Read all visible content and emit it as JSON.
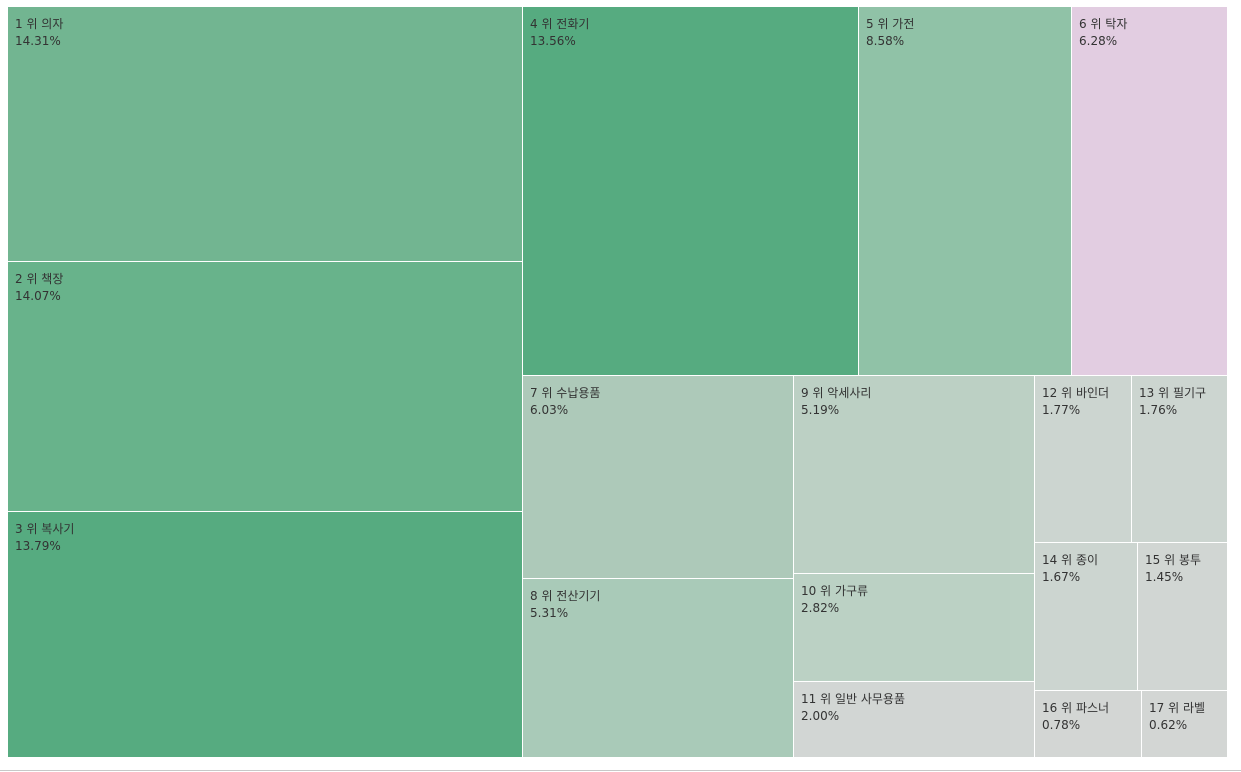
{
  "chart_data": {
    "type": "treemap",
    "value_unit": "%",
    "items": [
      {
        "rank_label": "1 위 의자",
        "value": 14.31,
        "value_label": "14.31%",
        "color": "#72b591"
      },
      {
        "rank_label": "2 위 책장",
        "value": 14.07,
        "value_label": "14.07%",
        "color": "#68b38b"
      },
      {
        "rank_label": "3 위 복사기",
        "value": 13.79,
        "value_label": "13.79%",
        "color": "#56ab80"
      },
      {
        "rank_label": "4 위 전화기",
        "value": 13.56,
        "value_label": "13.56%",
        "color": "#56ab80"
      },
      {
        "rank_label": "5 위 가전",
        "value": 8.58,
        "value_label": "8.58%",
        "color": "#90c2a7"
      },
      {
        "rank_label": "6 위 탁자",
        "value": 6.28,
        "value_label": "6.28%",
        "color": "#e2cde1"
      },
      {
        "rank_label": "7 위 수납용품",
        "value": 6.03,
        "value_label": "6.03%",
        "color": "#adc9b9"
      },
      {
        "rank_label": "8 위 전산기기",
        "value": 5.31,
        "value_label": "5.31%",
        "color": "#a9cab8"
      },
      {
        "rank_label": "9 위 악세사리",
        "value": 5.19,
        "value_label": "5.19%",
        "color": "#bcd0c4"
      },
      {
        "rank_label": "10 위 가구류",
        "value": 2.82,
        "value_label": "2.82%",
        "color": "#bbd1c4"
      },
      {
        "rank_label": "11 위 일반 사무용품",
        "value": 2.0,
        "value_label": "2.00%",
        "color": "#d2d6d4"
      },
      {
        "rank_label": "12 위 바인더",
        "value": 1.77,
        "value_label": "1.77%",
        "color": "#ccd5d0"
      },
      {
        "rank_label": "13 위 필기구",
        "value": 1.76,
        "value_label": "1.76%",
        "color": "#ccd5d0"
      },
      {
        "rank_label": "14 위 종이",
        "value": 1.67,
        "value_label": "1.67%",
        "color": "#ccd5d0"
      },
      {
        "rank_label": "15 위 봉투",
        "value": 1.45,
        "value_label": "1.45%",
        "color": "#d1d6d3"
      },
      {
        "rank_label": "16 위 파스너",
        "value": 0.78,
        "value_label": "0.78%",
        "color": "#d3d6d4"
      },
      {
        "rank_label": "17 위 라벨",
        "value": 0.62,
        "value_label": "0.62%",
        "color": "#d3d6d4"
      }
    ]
  }
}
